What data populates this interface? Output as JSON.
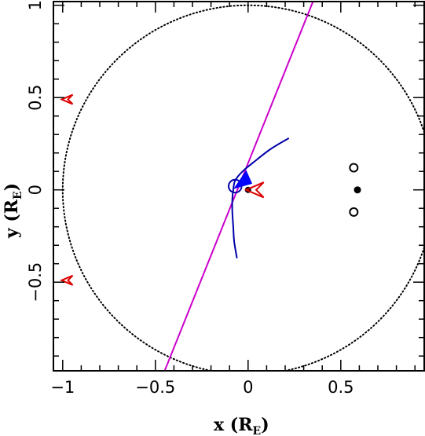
{
  "chart_data": {
    "type": "scatter",
    "title": "",
    "xlabel": "x",
    "xunit": "R",
    "xunit_sub": "E",
    "ylabel": "y",
    "yunit": "R",
    "yunit_sub": "E",
    "xlim": [
      -1.05,
      0.95
    ],
    "ylim": [
      -0.98,
      1.02
    ],
    "x_ticks": [
      {
        "value": -1.0,
        "label": "−1"
      },
      {
        "value": -0.5,
        "label": "−0.5"
      },
      {
        "value": 0.0,
        "label": "0"
      },
      {
        "value": 0.5,
        "label": "0.5"
      }
    ],
    "y_ticks": [
      {
        "value": -0.5,
        "label": "−0.5"
      },
      {
        "value": 0.0,
        "label": "0"
      },
      {
        "value": 0.5,
        "label": "0.5"
      },
      {
        "value": 1.0,
        "label": "1"
      }
    ],
    "grid": false,
    "elements": {
      "einstein_ring": {
        "center": [
          0,
          0
        ],
        "radius": 1.0,
        "style": "dotted",
        "color": "#000000"
      },
      "source_trajectory": {
        "points": [
          [
            -0.45,
            -0.98
          ],
          [
            0.35,
            1.02
          ]
        ],
        "color": "#cc00cc"
      },
      "caustic_curve": {
        "points": [
          [
            0.22,
            0.28
          ],
          [
            0.12,
            0.22
          ],
          [
            0.03,
            0.15
          ],
          [
            -0.03,
            0.1
          ],
          [
            -0.07,
            0.05
          ],
          [
            -0.08,
            0.0
          ],
          [
            -0.085,
            -0.05
          ],
          [
            -0.085,
            -0.12
          ],
          [
            -0.08,
            -0.2
          ],
          [
            -0.075,
            -0.28
          ],
          [
            -0.06,
            -0.37
          ]
        ],
        "color": "#0000aa"
      },
      "caustic_arrow": {
        "position": [
          -0.04,
          0.06
        ],
        "color": "#0000ff"
      },
      "small_loop": {
        "center": [
          -0.07,
          0.02
        ],
        "radius": 0.035,
        "color": "#0000aa"
      },
      "lens_primary": {
        "position": [
          0.0,
          0.0
        ],
        "filled": true
      },
      "lens_star": {
        "position": [
          0.59,
          0.0
        ],
        "filled": true
      },
      "lens_open_upper": {
        "position": [
          0.57,
          0.12
        ],
        "filled": false
      },
      "lens_open_lower": {
        "position": [
          0.57,
          -0.12
        ],
        "filled": false
      },
      "image_markers": [
        {
          "position": [
            0.03,
            0.0
          ],
          "direction": "left",
          "size": "large",
          "color": "#dd0000"
        },
        {
          "position": [
            -0.98,
            0.49
          ],
          "direction": "left",
          "size": "small",
          "color": "#dd0000"
        },
        {
          "position": [
            -0.98,
            -0.49
          ],
          "direction": "left",
          "size": "small",
          "color": "#dd0000"
        }
      ]
    }
  }
}
